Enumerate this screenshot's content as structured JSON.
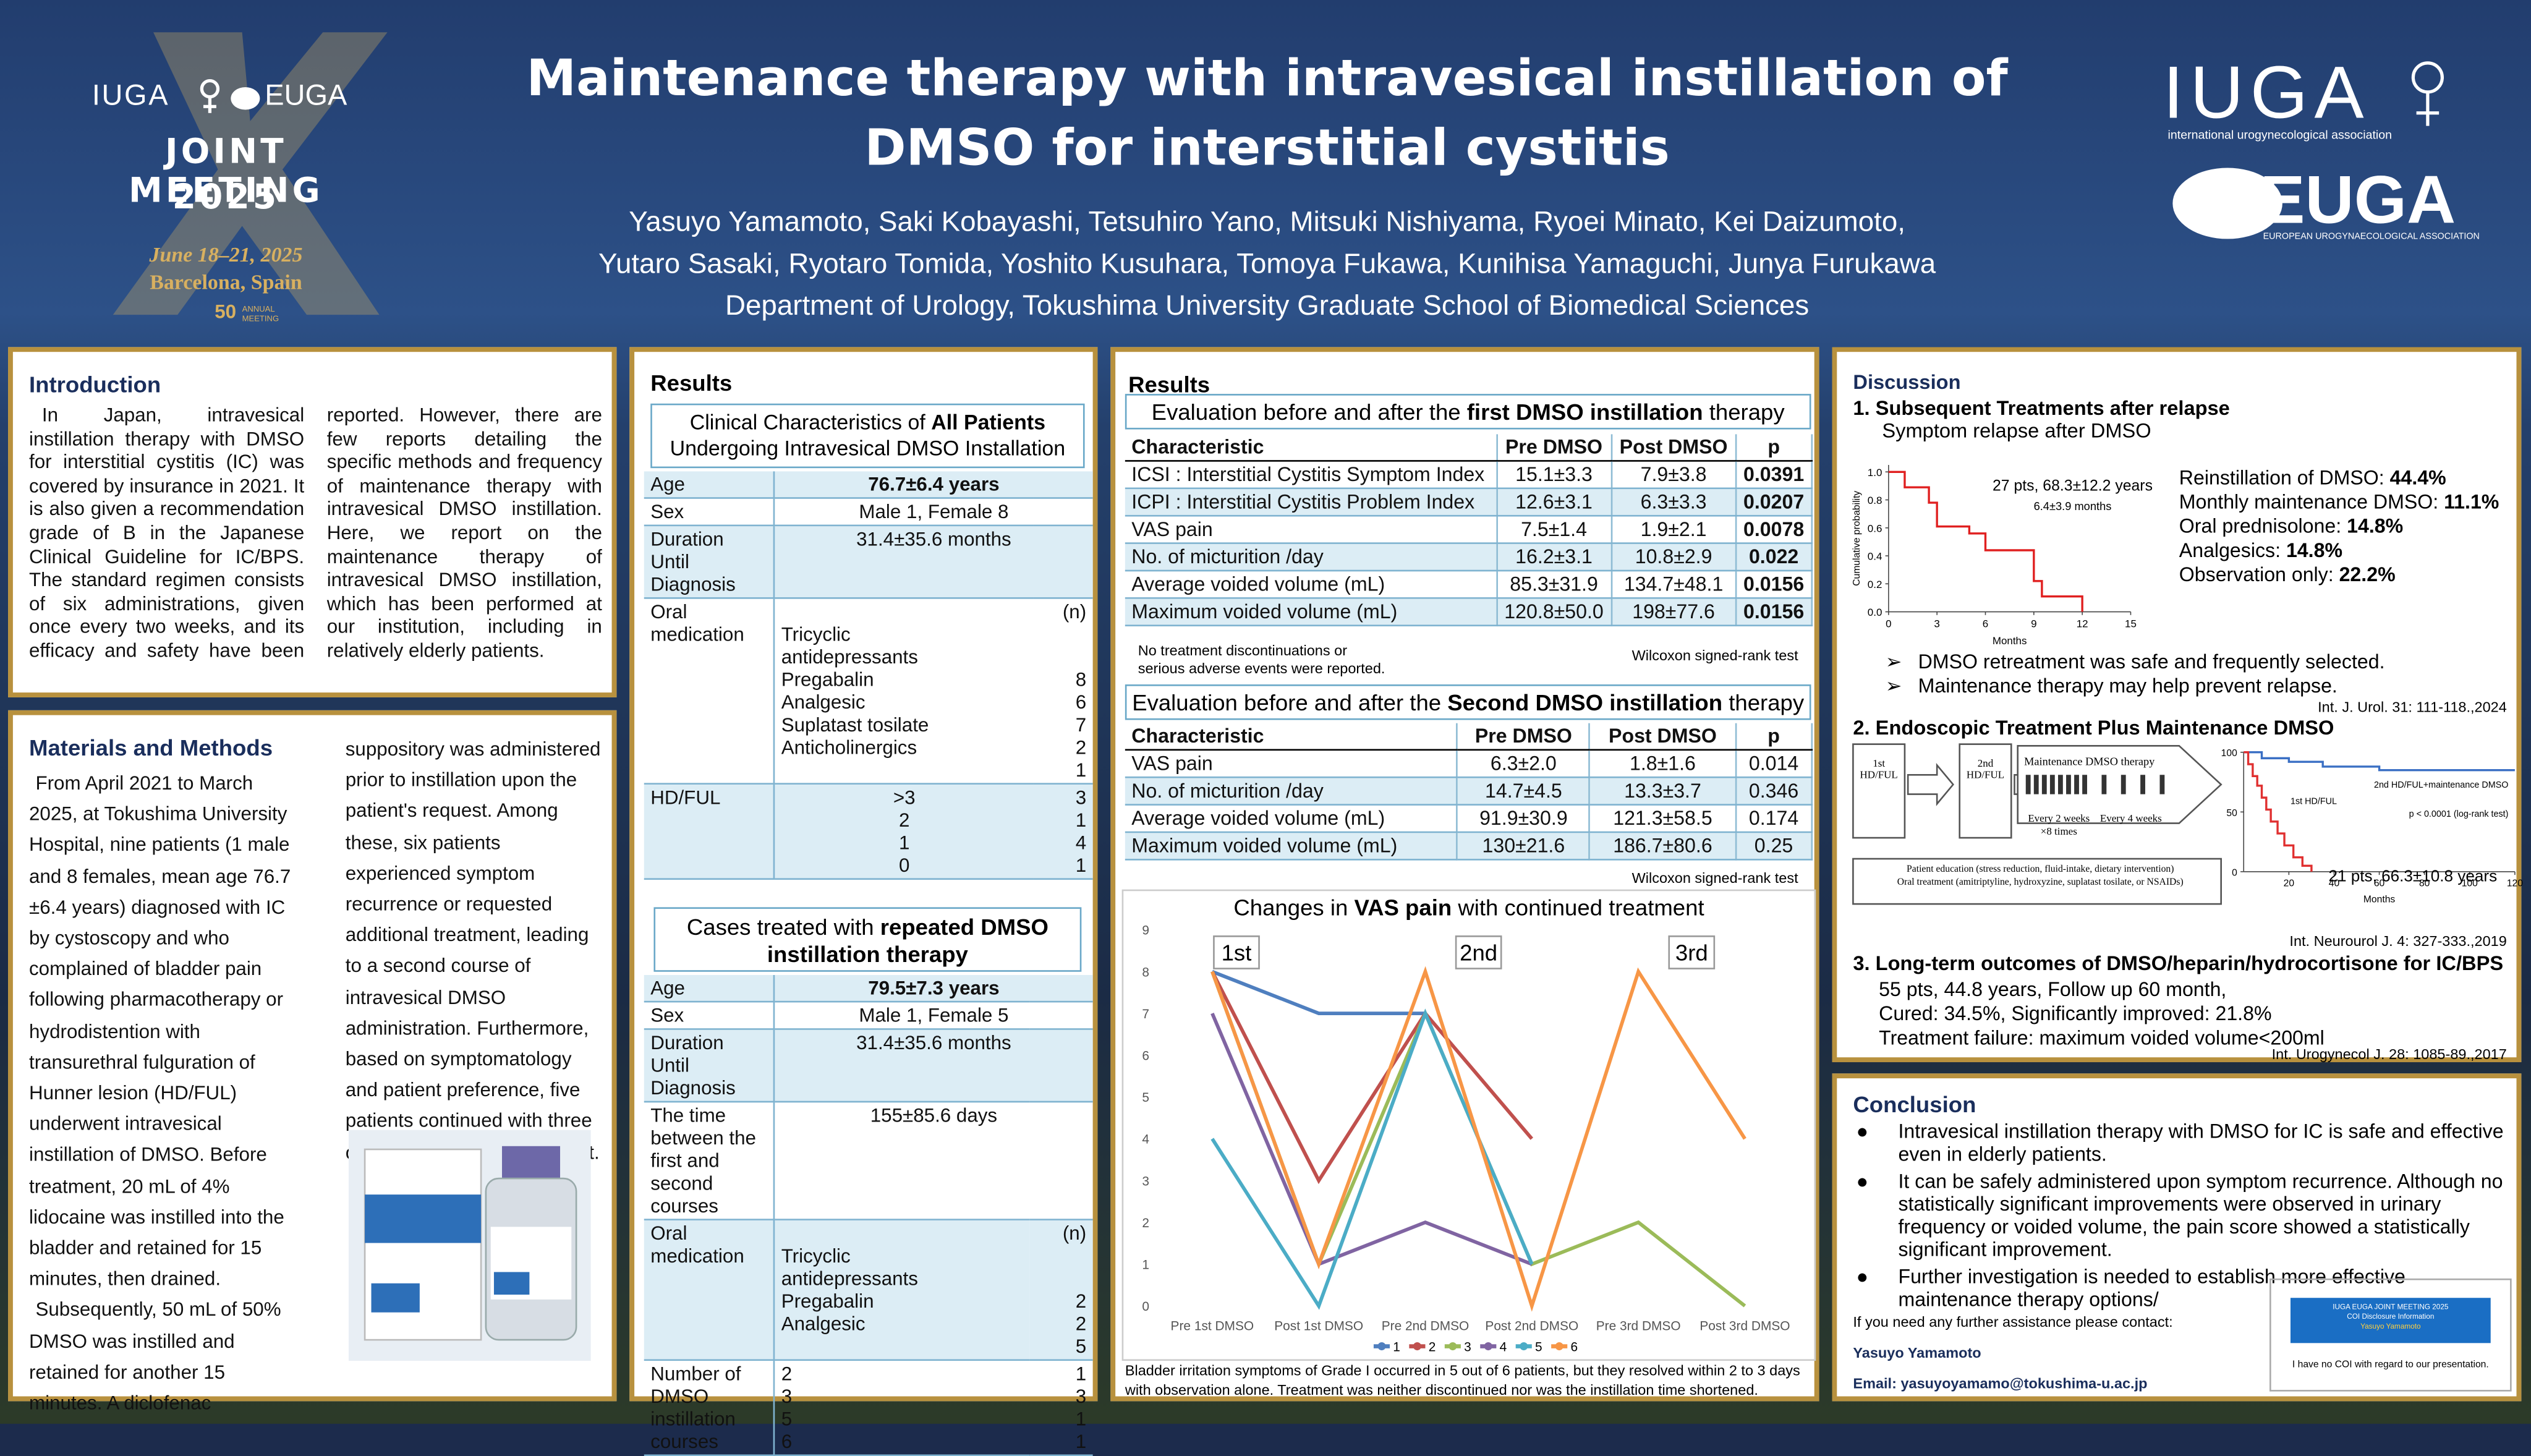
{
  "header": {
    "left_logo": {
      "iuga": "IUGA",
      "euga": "EUGA",
      "meeting": "JOINT MEETING",
      "year": "2025",
      "dates": "June 18–21, 2025",
      "place": "Barcelona, Spain",
      "anniversary": "50",
      "anniversary_label": "ANNUAL MEETING"
    },
    "title": [
      "Maintenance therapy with intravesical instillation of",
      "DMSO for interstitial cystitis"
    ],
    "authors": [
      "Yasuyo Yamamoto, Saki Kobayashi, Tetsuhiro Yano, Mitsuki Nishiyama, Ryoei Minato, Kei Daizumoto,",
      "Yutaro Sasaki, Ryotaro Tomida, Yoshito Kusuhara, Tomoya Fukawa, Kunihisa Yamaguchi, Junya Furukawa"
    ],
    "affiliation": "Department of Urology, Tokushima University Graduate School of Biomedical Sciences",
    "right_logo": {
      "iuga": "IUGA",
      "iuga_sub": "international urogynecological association",
      "euga": "EUGA",
      "euga_sub": "EUROPEAN UROGYNAECOLOGICAL ASSOCIATION"
    }
  },
  "introduction": {
    "heading": "Introduction",
    "text": "In Japan, intravesical instillation therapy with DMSO for interstitial cystitis (IC) was covered by insurance in 2021. It is also given a recommendation grade of B in the Japanese Clinical Guideline for IC/BPS. The standard regimen consists of six administrations, given once every two weeks, and its efficacy and safety have been reported. However, there are few reports detailing the specific methods and frequency of maintenance therapy with intravesical DMSO instillation. Here, we report on the maintenance therapy of intravesical DMSO instillation, which has been performed at our institution, including in relatively elderly patients."
  },
  "methods": {
    "heading": "Materials and Methods",
    "text": [
      "From April 2021 to March 2025, at Tokushima University Hospital, nine patients (1 male and 8 females, mean age 76.7 ±6.4 years) diagnosed with IC by cystoscopy and who complained of bladder pain following pharmacotherapy or hydrodistention with transurethral fulguration of Hunner lesion (HD/FUL) underwent intravesical instillation of DMSO. Before treatment, 20 mL of 4% lidocaine was instilled into the bladder and retained for 15 minutes, then drained.",
      "Subsequently, 50 mL of 50% DMSO was instilled and retained for another 15 minutes. A diclofenac",
      "suppository was administered prior to instillation upon the patient's request. Among these, six patients experienced symptom recurrence or requested additional treatment, leading to a second course of intravesical DMSO administration. Furthermore, based on symptomatology and patient preference, five patients continued with three or more courses of treatment."
    ]
  },
  "results_left": {
    "heading": "Results",
    "table1": {
      "title": [
        "Clinical Characteristics of ",
        "All Patients",
        " Undergoing Intravesical DMSO Installation"
      ],
      "rows": [
        [
          "Age",
          "76.7±6.4 years"
        ],
        [
          "Sex",
          "Male 1, Female 8"
        ],
        [
          "Duration Until Diagnosis",
          "31.4±35.6 months"
        ],
        [
          "Oral medication",
          "\nTricyclic\nantidepressants\nPregabalin\nAnalgesic\nSuplatast tosilate\nAnticholinergics",
          "(n)\n\n\n8\n6\n7\n2\n1"
        ],
        [
          "HD/FUL",
          ">3\n2\n1\n0",
          "3\n1\n4\n1"
        ]
      ]
    },
    "table2": {
      "title": [
        "Cases treated with ",
        "repeated DMSO instillation therapy"
      ],
      "rows": [
        [
          "Age",
          "79.5±7.3 years"
        ],
        [
          "Sex",
          "Male 1, Female 5"
        ],
        [
          "Duration Until Diagnosis",
          "31.4±35.6 months"
        ],
        [
          "The time between the first and second courses",
          "155±85.6 days"
        ],
        [
          "Oral medication",
          "\nTricyclic\nantidepressants\nPregabalin\nAnalgesic",
          "(n)\n\n\n2\n2\n5"
        ],
        [
          "Number of DMSO instillation courses",
          "2\n3\n5\n6",
          "1\n3\n1\n1"
        ]
      ]
    }
  },
  "results_right": {
    "heading": "Results",
    "table1": {
      "title": [
        "Evaluation before and after the ",
        "first DMSO instillation",
        " therapy"
      ],
      "header": [
        "Characteristic",
        "Pre DMSO",
        "Post DMSO",
        "p"
      ],
      "rows": [
        [
          "ICSI : Interstitial Cystitis Symptom Index",
          "15.1±3.3",
          "7.9±3.8",
          "0.0391"
        ],
        [
          "ICPI : Interstitial Cystitis Problem Index",
          "12.6±3.1",
          "6.3±3.3",
          "0.0207"
        ],
        [
          "VAS pain",
          "7.5±1.4",
          "1.9±2.1",
          "0.0078"
        ],
        [
          "No. of micturition /day",
          "16.2±3.1",
          "10.8±2.9",
          "0.022"
        ],
        [
          "Average voided volume (mL)",
          "85.3±31.9",
          "134.7±48.1",
          "0.0156"
        ],
        [
          "Maximum voided volume (mL)",
          "120.8±50.0",
          "198±77.6",
          "0.0156"
        ]
      ],
      "note": "No treatment discontinuations or\nserious adverse events were reported.",
      "test": "Wilcoxon signed-rank test"
    },
    "table2": {
      "title": [
        "Evaluation before and after the ",
        "Second DMSO instillation",
        " therapy"
      ],
      "header": [
        "Characteristic",
        "Pre DMSO",
        "Post DMSO",
        "p"
      ],
      "rows": [
        [
          "VAS pain",
          "6.3±2.0",
          "1.8±1.6",
          "0.014"
        ],
        [
          "No. of micturition /day",
          "14.7±4.5",
          "13.3±3.7",
          "0.346"
        ],
        [
          "Average voided volume (mL)",
          "91.9±30.9",
          "121.3±58.5",
          "0.174"
        ],
        [
          "Maximum voided volume (mL)",
          "130±21.6",
          "186.7±80.6",
          "0.25"
        ]
      ],
      "test": "Wilcoxon signed-rank test"
    },
    "footnote": "Bladder irritation symptoms of Grade I occurred in 5 out of 6 patients, but they resolved within 2 to 3 days with observation alone. Treatment was neither discontinued nor was the instillation time shortened."
  },
  "vas_chart": {
    "type": "line",
    "title": [
      "Changes in ",
      "VAS pain",
      " with continued treatment"
    ],
    "annotations": [
      "1st",
      "2nd",
      "3rd"
    ],
    "categories": [
      "Pre 1st DMSO",
      "Post 1st DMSO",
      "Pre 2nd DMSO",
      "Post 2nd DMSO",
      "Pre 3rd DMSO",
      "Post 3rd DMSO"
    ],
    "series": [
      {
        "name": "1",
        "color": "#4f7fbf",
        "values": [
          8,
          7,
          7,
          null,
          null,
          null
        ]
      },
      {
        "name": "2",
        "color": "#c0504d",
        "values": [
          8,
          3,
          7,
          4,
          null,
          null
        ]
      },
      {
        "name": "3",
        "color": "#9bbb59",
        "values": [
          8,
          1,
          7,
          1,
          2,
          0
        ]
      },
      {
        "name": "4",
        "color": "#8064a2",
        "values": [
          7,
          1,
          2,
          1,
          null,
          null
        ]
      },
      {
        "name": "5",
        "color": "#4bacc6",
        "values": [
          4,
          0,
          7,
          1,
          null,
          null
        ]
      },
      {
        "name": "6",
        "color": "#f79646",
        "values": [
          8,
          1,
          8,
          0,
          8,
          4
        ]
      }
    ],
    "ylim": [
      0,
      9
    ],
    "yticks": [
      0,
      1,
      2,
      3,
      4,
      5,
      6,
      7,
      8,
      9
    ],
    "grid": false,
    "legend": "bottom"
  },
  "discussion": {
    "heading": "Discussion",
    "s1": {
      "heading": "1. Subsequent Treatments after relapse",
      "subheading": "Symptom relapse after DMSO",
      "chart": {
        "type": "step",
        "ylabel": "Cumulative probability",
        "xlabel": "Months",
        "annotation": "27 pts, 68.3±12.2 years",
        "annotation2": "6.4±3.9 months",
        "color": "#e02020",
        "x": [
          0,
          1,
          2.5,
          3,
          5,
          6,
          9,
          9.5,
          12
        ],
        "values": [
          1,
          0.89,
          0.78,
          0.61,
          0.56,
          0.44,
          0.22,
          0.11,
          0
        ],
        "xlim": [
          0,
          15
        ],
        "xticks": [
          0,
          3,
          6,
          9,
          12,
          15
        ],
        "ylim": [
          0,
          1.05
        ],
        "yticks": [
          {
            "value": 0,
            "label": "0.0"
          },
          0.2,
          0.4,
          0.6,
          0.8,
          {
            "value": 1,
            "label": "1.0"
          }
        ]
      },
      "list": [
        [
          "Reinstillation of DMSO: ",
          "44.4%"
        ],
        [
          "Monthly maintenance DMSO: ",
          "11.1%"
        ],
        [
          "Oral prednisolone: ",
          "14.8%"
        ],
        [
          "Analgesics: ",
          "14.8%"
        ],
        [
          "Observation only: ",
          "22.2%"
        ]
      ],
      "bullets": [
        "DMSO retreatment was safe and frequently selected.",
        "Maintenance therapy may help prevent relapse."
      ],
      "ref": "Int. J. Urol. 31: 111-118.,2024"
    },
    "s2": {
      "heading": "2. Endoscopic Treatment Plus Maintenance DMSO",
      "box1": "1st\nHD/FUL",
      "box2": "2nd\nHD/FUL",
      "therapy": "Maintenance DMSO therapy",
      "every2": "Every 2 weeks\n×8 times",
      "every4": "Every 4 weeks",
      "education": "Patient education (stress reduction, fluid-intake, dietary intervention)\nOral treatment (amitriptyline, hydroxyzine, suplatast tosilate, or NSAIDs)",
      "chart": {
        "type": "step",
        "xlabel": "Months",
        "p_text": "p < 0.0001 (log-rank test)",
        "xlim": [
          0,
          120
        ],
        "xticks": [
          20,
          40,
          60,
          80,
          100,
          120
        ],
        "ylim": [
          0,
          100
        ],
        "yticks": [
          0,
          50,
          100
        ],
        "series": [
          {
            "name": "2nd HD/FUL+maintenance DMSO",
            "color": "#3a6fc4",
            "x": [
              0,
              8,
              20,
              35,
              60,
              120
            ],
            "values": [
              100,
              95,
              92,
              88,
              85,
              85
            ]
          },
          {
            "name": "1st HD/FUL",
            "color": "#e03030",
            "x": [
              0,
              2,
              4,
              6,
              8,
              10,
              12,
              15,
              18,
              22,
              26,
              30
            ],
            "values": [
              100,
              90,
              80,
              72,
              62,
              52,
              42,
              32,
              22,
              12,
              5,
              0
            ]
          }
        ]
      },
      "annotation": "21 pts, 66.3±10.8 years",
      "ref": "Int. Neurourol J. 4: 327-333.,2019"
    },
    "s3": {
      "heading": "3. Long-term outcomes of DMSO/heparin/hydrocortisone for IC/BPS",
      "lines": [
        "55 pts, 44.8 years, Follow up 60 month,",
        "Cured: 34.5%, Significantly improved: 21.8%",
        "Treatment failure: maximum voided volume<200ml"
      ],
      "ref": "Int. Urogynecol J. 28: 1085-89.,2017"
    }
  },
  "conclusion": {
    "heading": "Conclusion",
    "items": [
      "Intravesical instillation therapy with DMSO for IC is safe and effective even in elderly patients.",
      "It can be safely administered upon symptom recurrence. Although no statistically significant improvements were observed in urinary frequency or voided volume, the pain score showed a statistically significant improvement.",
      "Further investigation is needed to establish more effective maintenance therapy options/"
    ],
    "contact": "If you need any further assistance please contact:",
    "name": "Yasuyo Yamamoto",
    "email": "Email: yasuyoyamamo@tokushima-u.ac.jp",
    "coi": {
      "meeting": "IUGA EUGA JOINT MEETING 2025",
      "title": "COI Disclosure Information",
      "name": "Yasuyo Yamamoto",
      "statement": "I have no COI with regard to our presentation."
    }
  }
}
